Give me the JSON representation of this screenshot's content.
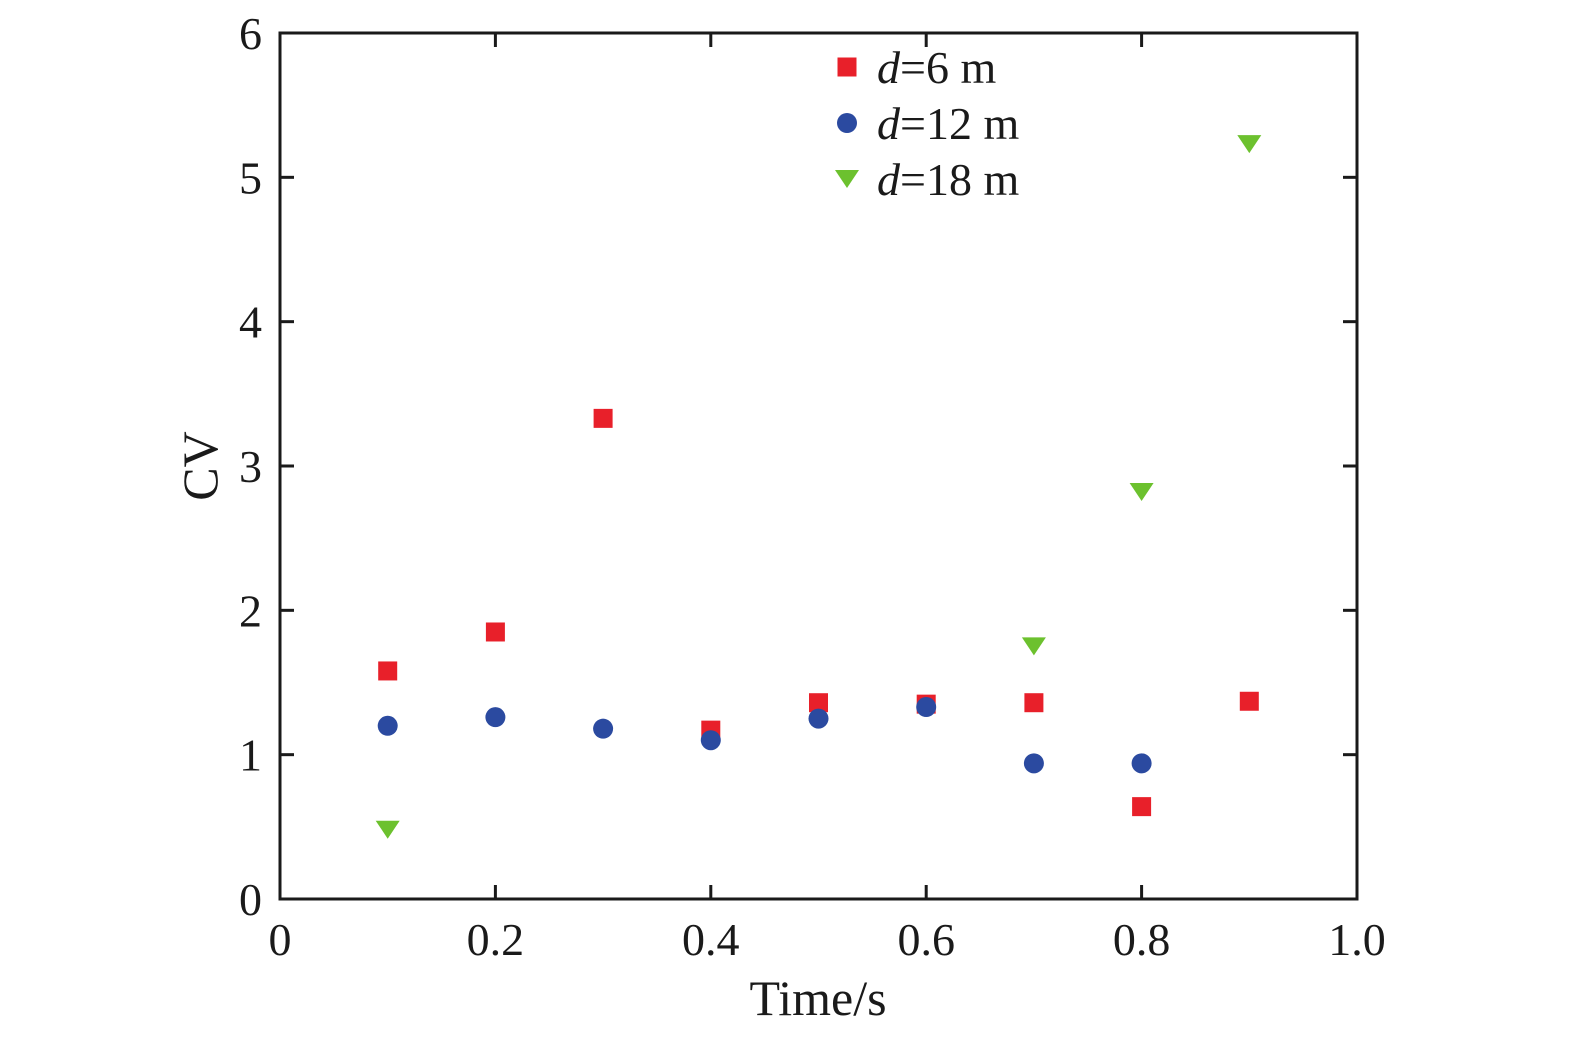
{
  "chart_data": {
    "type": "scatter",
    "title": "",
    "xlabel": "Time/s",
    "ylabel": "CV",
    "xlim": [
      0,
      1.0
    ],
    "ylim": [
      0,
      6
    ],
    "x_ticks": [
      "0",
      "0.2",
      "0.4",
      "0.6",
      "0.8",
      "1.0"
    ],
    "y_ticks": [
      "0",
      "1",
      "2",
      "3",
      "4",
      "5",
      "6"
    ],
    "grid": false,
    "legend_position": "top-center",
    "series": [
      {
        "name_var": "d",
        "name_rest": "=6 m",
        "marker": "square",
        "color": "#e8202a",
        "points": [
          {
            "x": 0.1,
            "y": 1.58
          },
          {
            "x": 0.2,
            "y": 1.85
          },
          {
            "x": 0.3,
            "y": 3.33
          },
          {
            "x": 0.4,
            "y": 1.17
          },
          {
            "x": 0.5,
            "y": 1.36
          },
          {
            "x": 0.6,
            "y": 1.35
          },
          {
            "x": 0.7,
            "y": 1.36
          },
          {
            "x": 0.8,
            "y": 0.64
          },
          {
            "x": 0.9,
            "y": 1.37
          }
        ]
      },
      {
        "name_var": "d",
        "name_rest": "=12 m",
        "marker": "circle",
        "color": "#2b4aa0",
        "points": [
          {
            "x": 0.1,
            "y": 1.2
          },
          {
            "x": 0.2,
            "y": 1.26
          },
          {
            "x": 0.3,
            "y": 1.18
          },
          {
            "x": 0.4,
            "y": 1.1
          },
          {
            "x": 0.5,
            "y": 1.25
          },
          {
            "x": 0.6,
            "y": 1.33
          },
          {
            "x": 0.7,
            "y": 0.94
          },
          {
            "x": 0.8,
            "y": 0.94
          }
        ]
      },
      {
        "name_var": "d",
        "name_rest": "=18 m",
        "marker": "triangle-down",
        "color": "#6cc12e",
        "points": [
          {
            "x": 0.1,
            "y": 0.48
          },
          {
            "x": 0.7,
            "y": 1.75
          },
          {
            "x": 0.8,
            "y": 2.82
          },
          {
            "x": 0.9,
            "y": 5.23
          }
        ]
      }
    ]
  }
}
